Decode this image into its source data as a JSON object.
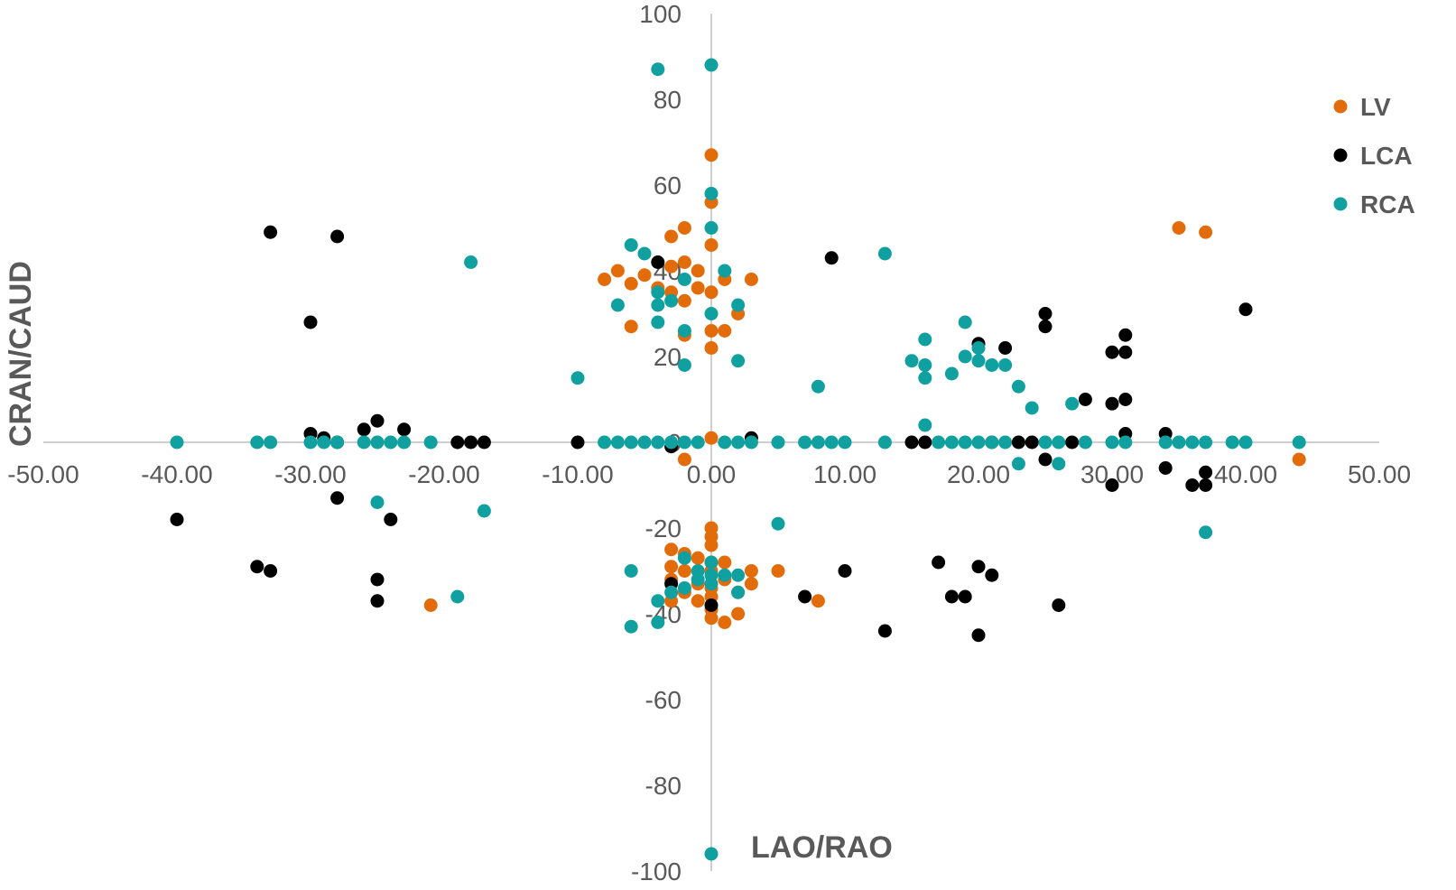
{
  "chart_data": {
    "type": "scatter",
    "xlabel": "LAO/RAO",
    "ylabel": "CRAN/CAUD",
    "xlim": [
      -50,
      50
    ],
    "ylim": [
      -100,
      100
    ],
    "x_ticks": [
      "-50.00",
      "-40.00",
      "-30.00",
      "-20.00",
      "-10.00",
      "0.00",
      "10.00",
      "20.00",
      "30.00",
      "40.00",
      "50.00"
    ],
    "y_ticks": [
      "100",
      "80",
      "60",
      "40",
      "20",
      "0",
      "-20",
      "-40",
      "-60",
      "-80",
      "-100"
    ],
    "grid": false,
    "legend_position": "right",
    "series": [
      {
        "name": "LV",
        "color": "#E36C0A",
        "points": [
          [
            0,
            67
          ],
          [
            0,
            56
          ],
          [
            -2,
            50
          ],
          [
            -3,
            48
          ],
          [
            0,
            46
          ],
          [
            35,
            50
          ],
          [
            37,
            49
          ],
          [
            -8,
            38
          ],
          [
            -7,
            40
          ],
          [
            -6,
            37
          ],
          [
            -5,
            39
          ],
          [
            -3,
            41
          ],
          [
            -2,
            42
          ],
          [
            -1,
            40
          ],
          [
            1,
            38
          ],
          [
            3,
            38
          ],
          [
            -4,
            36
          ],
          [
            -3,
            35
          ],
          [
            -2,
            33
          ],
          [
            0,
            35
          ],
          [
            -1,
            36
          ],
          [
            2,
            30
          ],
          [
            -6,
            27
          ],
          [
            0,
            26
          ],
          [
            1,
            26
          ],
          [
            -2,
            25
          ],
          [
            0,
            22
          ],
          [
            0,
            1
          ],
          [
            -2,
            -4
          ],
          [
            44,
            -4
          ],
          [
            0,
            -20
          ],
          [
            0,
            -22
          ],
          [
            0,
            -24
          ],
          [
            -3,
            -25
          ],
          [
            -2,
            -26
          ],
          [
            -1,
            -27
          ],
          [
            0,
            -28
          ],
          [
            1,
            -28
          ],
          [
            -3,
            -29
          ],
          [
            -2,
            -30
          ],
          [
            0,
            -30
          ],
          [
            3,
            -30
          ],
          [
            5,
            -30
          ],
          [
            -3,
            -32
          ],
          [
            -1,
            -33
          ],
          [
            0,
            -34
          ],
          [
            1,
            -32
          ],
          [
            3,
            -33
          ],
          [
            -2,
            -35
          ],
          [
            0,
            -36
          ],
          [
            2,
            -35
          ],
          [
            -3,
            -37
          ],
          [
            -1,
            -37
          ],
          [
            0,
            -39
          ],
          [
            2,
            -40
          ],
          [
            0,
            -41
          ],
          [
            1,
            -42
          ],
          [
            8,
            -37
          ],
          [
            -21,
            -38
          ]
        ]
      },
      {
        "name": "LCA",
        "color": "#000000",
        "points": [
          [
            -33,
            49
          ],
          [
            -28,
            48
          ],
          [
            9,
            43
          ],
          [
            -4,
            42
          ],
          [
            40,
            31
          ],
          [
            25,
            30
          ],
          [
            -30,
            28
          ],
          [
            25,
            27
          ],
          [
            31,
            25
          ],
          [
            20,
            23
          ],
          [
            22,
            22
          ],
          [
            30,
            21
          ],
          [
            31,
            21
          ],
          [
            28,
            10
          ],
          [
            31,
            10
          ],
          [
            30,
            9
          ],
          [
            -25,
            5
          ],
          [
            -26,
            3
          ],
          [
            -23,
            3
          ],
          [
            -30,
            2
          ],
          [
            -29,
            1
          ],
          [
            31,
            2
          ],
          [
            34,
            2
          ],
          [
            -28,
            0
          ],
          [
            -18,
            0
          ],
          [
            -17,
            0
          ],
          [
            -19,
            0
          ],
          [
            -10,
            0
          ],
          [
            3,
            1
          ],
          [
            15,
            0
          ],
          [
            16,
            0
          ],
          [
            21,
            0
          ],
          [
            23,
            0
          ],
          [
            24,
            0
          ],
          [
            27,
            0
          ],
          [
            -3,
            -1
          ],
          [
            25,
            -4
          ],
          [
            34,
            -6
          ],
          [
            37,
            -7
          ],
          [
            36,
            -10
          ],
          [
            37,
            -10
          ],
          [
            30,
            -10
          ],
          [
            -28,
            -13
          ],
          [
            -24,
            -18
          ],
          [
            -40,
            -18
          ],
          [
            -34,
            -29
          ],
          [
            -33,
            -30
          ],
          [
            10,
            -30
          ],
          [
            17,
            -28
          ],
          [
            20,
            -29
          ],
          [
            21,
            -31
          ],
          [
            -25,
            -32
          ],
          [
            -3,
            -33
          ],
          [
            7,
            -36
          ],
          [
            18,
            -36
          ],
          [
            19,
            -36
          ],
          [
            -25,
            -37
          ],
          [
            0,
            -38
          ],
          [
            26,
            -38
          ],
          [
            13,
            -44
          ],
          [
            20,
            -45
          ]
        ]
      },
      {
        "name": "RCA",
        "color": "#11A0A0",
        "points": [
          [
            0,
            88
          ],
          [
            -4,
            87
          ],
          [
            0,
            58
          ],
          [
            0,
            50
          ],
          [
            -6,
            46
          ],
          [
            13,
            44
          ],
          [
            -5,
            44
          ],
          [
            -18,
            42
          ],
          [
            1,
            40
          ],
          [
            -2,
            38
          ],
          [
            -4,
            35
          ],
          [
            -3,
            33
          ],
          [
            -4,
            32
          ],
          [
            -7,
            32
          ],
          [
            2,
            32
          ],
          [
            0,
            30
          ],
          [
            -4,
            28
          ],
          [
            -2,
            26
          ],
          [
            19,
            28
          ],
          [
            16,
            24
          ],
          [
            20,
            22
          ],
          [
            15,
            19
          ],
          [
            19,
            20
          ],
          [
            20,
            19
          ],
          [
            21,
            18
          ],
          [
            22,
            18
          ],
          [
            -2,
            18
          ],
          [
            2,
            19
          ],
          [
            16,
            18
          ],
          [
            18,
            16
          ],
          [
            16,
            15
          ],
          [
            -10,
            15
          ],
          [
            8,
            13
          ],
          [
            23,
            13
          ],
          [
            24,
            8
          ],
          [
            27,
            9
          ],
          [
            16,
            4
          ],
          [
            -40,
            0
          ],
          [
            -34,
            0
          ],
          [
            -33,
            0
          ],
          [
            -30,
            0
          ],
          [
            -29,
            0
          ],
          [
            -28,
            0
          ],
          [
            -26,
            0
          ],
          [
            -25,
            0
          ],
          [
            -24,
            0
          ],
          [
            -23,
            0
          ],
          [
            -21,
            0
          ],
          [
            -8,
            0
          ],
          [
            -7,
            0
          ],
          [
            -6,
            0
          ],
          [
            -5,
            0
          ],
          [
            -4,
            0
          ],
          [
            -3,
            0
          ],
          [
            -2,
            0
          ],
          [
            -1,
            0
          ],
          [
            1,
            0
          ],
          [
            2,
            0
          ],
          [
            3,
            0
          ],
          [
            5,
            0
          ],
          [
            7,
            0
          ],
          [
            8,
            0
          ],
          [
            9,
            0
          ],
          [
            10,
            0
          ],
          [
            13,
            0
          ],
          [
            17,
            0
          ],
          [
            18,
            0
          ],
          [
            19,
            0
          ],
          [
            20,
            0
          ],
          [
            21,
            0
          ],
          [
            22,
            0
          ],
          [
            25,
            0
          ],
          [
            26,
            0
          ],
          [
            28,
            0
          ],
          [
            30,
            0
          ],
          [
            31,
            0
          ],
          [
            34,
            0
          ],
          [
            35,
            0
          ],
          [
            36,
            0
          ],
          [
            37,
            0
          ],
          [
            39,
            0
          ],
          [
            40,
            0
          ],
          [
            44,
            0
          ],
          [
            23,
            -5
          ],
          [
            26,
            -5
          ],
          [
            -25,
            -14
          ],
          [
            -17,
            -16
          ],
          [
            5,
            -19
          ],
          [
            37,
            -21
          ],
          [
            -2,
            -27
          ],
          [
            0,
            -28
          ],
          [
            -6,
            -30
          ],
          [
            -1,
            -30
          ],
          [
            0,
            -31
          ],
          [
            1,
            -31
          ],
          [
            2,
            -31
          ],
          [
            -1,
            -32
          ],
          [
            0,
            -33
          ],
          [
            -3,
            -35
          ],
          [
            -2,
            -34
          ],
          [
            2,
            -35
          ],
          [
            -19,
            -36
          ],
          [
            -4,
            -37
          ],
          [
            -4,
            -42
          ],
          [
            -6,
            -43
          ],
          [
            0,
            -96
          ]
        ]
      }
    ]
  }
}
